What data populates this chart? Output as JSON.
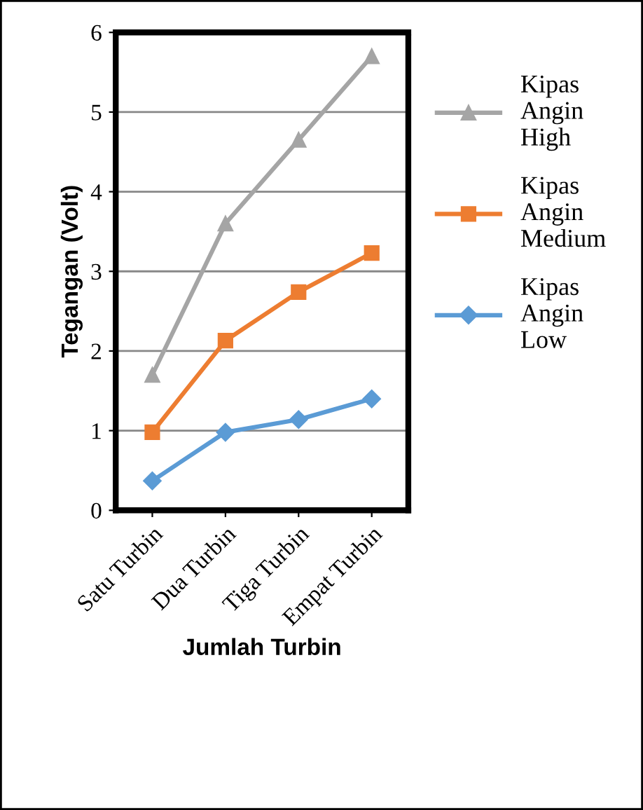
{
  "chart_data": {
    "type": "line",
    "xlabel": "Jumlah Turbin",
    "ylabel": "Tegangan (Volt)",
    "categories": [
      "Satu Turbin",
      "Dua Turbin",
      "Tiga Turbin",
      "Empat Turbin"
    ],
    "series": [
      {
        "name": "Kipas Angin High",
        "color": "#a5a5a5",
        "marker": "triangle",
        "values": [
          1.7,
          3.6,
          4.65,
          5.7
        ]
      },
      {
        "name": "Kipas Angin Medium",
        "color": "#ed7d31",
        "marker": "square",
        "values": [
          0.98,
          2.13,
          2.74,
          3.23
        ]
      },
      {
        "name": "Kipas Angin Low",
        "color": "#5b9bd5",
        "marker": "diamond",
        "values": [
          0.37,
          0.98,
          1.14,
          1.4
        ]
      }
    ],
    "ylim": [
      0,
      6
    ],
    "yticks": [
      0,
      1,
      2,
      3,
      4,
      5,
      6
    ],
    "grid": "y",
    "legend": "right"
  }
}
